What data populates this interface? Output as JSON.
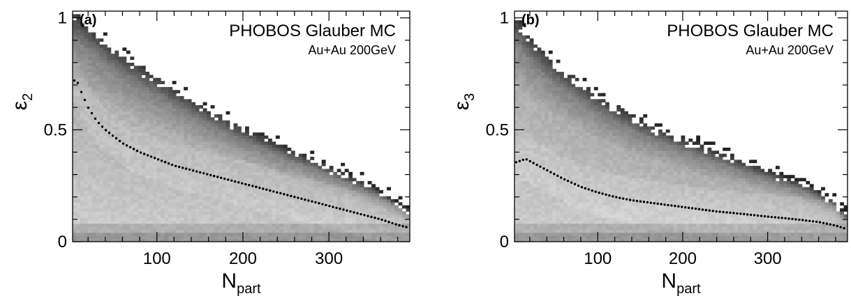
{
  "chart_data": [
    {
      "type": "heatmap",
      "panel_label": "(a)",
      "title": "PHOBOS Glauber MC",
      "subtitle": "Au+Au 200GeV",
      "xlabel": "N",
      "xlabel_sub": "part",
      "ylabel": "ε",
      "ylabel_sub": "2",
      "xlim": [
        2,
        394
      ],
      "ylim": [
        0,
        1.03
      ],
      "xticks": [
        100,
        200,
        300
      ],
      "xtick_labels": [
        "100",
        "200",
        "300"
      ],
      "yticks": [
        0,
        0.5,
        1
      ],
      "ytick_labels": [
        "0",
        "0.5",
        "1"
      ],
      "grid": false,
      "colorscale": "grayscale",
      "edge": {
        "x": [
          5,
          20,
          50,
          100,
          150,
          200,
          250,
          300,
          350,
          380,
          390
        ],
        "y": [
          1.0,
          0.95,
          0.85,
          0.72,
          0.6,
          0.5,
          0.41,
          0.33,
          0.24,
          0.17,
          0.14
        ]
      },
      "mean_series": {
        "x": [
          4,
          8,
          12,
          20,
          30,
          40,
          50,
          60,
          80,
          100,
          120,
          140,
          160,
          180,
          200,
          220,
          240,
          260,
          280,
          300,
          320,
          340,
          360,
          380,
          390
        ],
        "y": [
          0.72,
          0.71,
          0.67,
          0.6,
          0.54,
          0.5,
          0.47,
          0.44,
          0.4,
          0.37,
          0.34,
          0.32,
          0.3,
          0.28,
          0.26,
          0.24,
          0.22,
          0.2,
          0.18,
          0.16,
          0.14,
          0.12,
          0.1,
          0.075,
          0.065
        ]
      }
    },
    {
      "type": "heatmap",
      "panel_label": "(b)",
      "title": "PHOBOS Glauber MC",
      "subtitle": "Au+Au 200GeV",
      "xlabel": "N",
      "xlabel_sub": "part",
      "ylabel": "ε",
      "ylabel_sub": "3",
      "xlim": [
        2,
        394
      ],
      "ylim": [
        0,
        1.03
      ],
      "xticks": [
        100,
        200,
        300
      ],
      "xtick_labels": [
        "100",
        "200",
        "300"
      ],
      "yticks": [
        0,
        0.5,
        1
      ],
      "ytick_labels": [
        "0",
        "0.5",
        "1"
      ],
      "grid": false,
      "colorscale": "grayscale",
      "edge": {
        "x": [
          5,
          20,
          50,
          100,
          150,
          200,
          250,
          300,
          350,
          380,
          390
        ],
        "y": [
          0.98,
          0.9,
          0.78,
          0.64,
          0.53,
          0.45,
          0.38,
          0.31,
          0.24,
          0.17,
          0.12
        ]
      },
      "mean_series": {
        "x": [
          4,
          8,
          15,
          20,
          30,
          40,
          60,
          80,
          100,
          120,
          140,
          160,
          180,
          200,
          220,
          240,
          260,
          280,
          300,
          320,
          340,
          360,
          380,
          390
        ],
        "y": [
          0.355,
          0.36,
          0.37,
          0.36,
          0.34,
          0.32,
          0.28,
          0.245,
          0.22,
          0.2,
          0.185,
          0.175,
          0.165,
          0.155,
          0.145,
          0.135,
          0.128,
          0.12,
          0.112,
          0.105,
          0.097,
          0.088,
          0.072,
          0.06
        ]
      }
    }
  ]
}
